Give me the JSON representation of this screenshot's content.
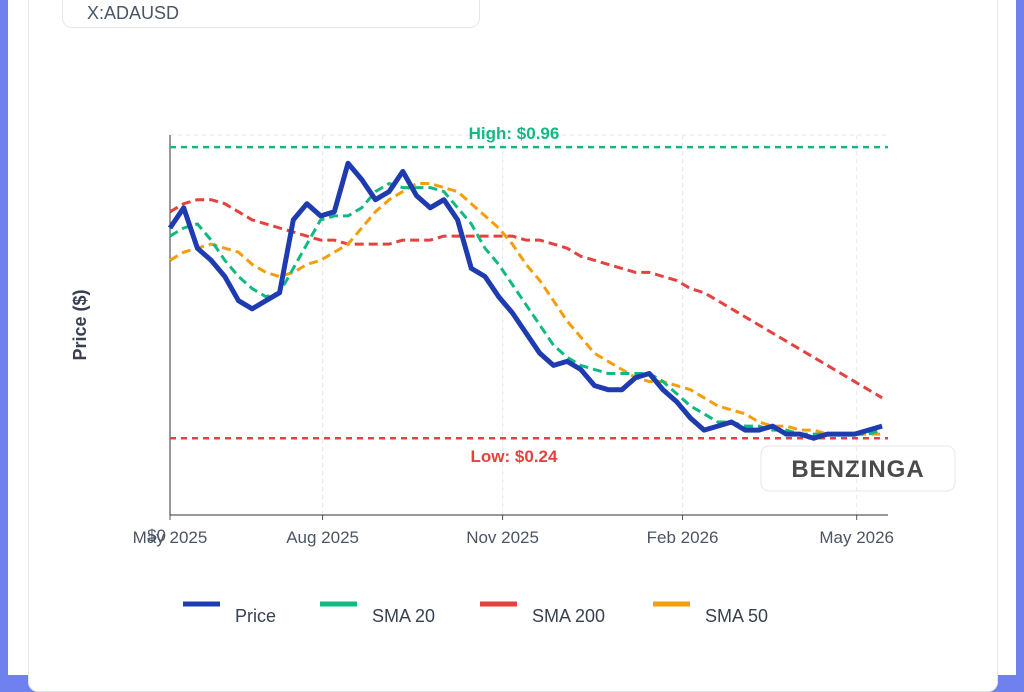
{
  "ticker": "X:ADAUSD",
  "watermark": "BENZINGA",
  "chart_data": {
    "type": "line",
    "ylabel": "Price ($)",
    "x": [
      "2025-05-15",
      "2025-05-22",
      "2025-05-29",
      "2025-06-05",
      "2025-06-12",
      "2025-06-19",
      "2025-06-26",
      "2025-07-03",
      "2025-07-10",
      "2025-07-17",
      "2025-07-24",
      "2025-07-31",
      "2025-08-07",
      "2025-08-14",
      "2025-08-21",
      "2025-08-28",
      "2025-09-04",
      "2025-09-11",
      "2025-09-18",
      "2025-09-25",
      "2025-10-02",
      "2025-10-09",
      "2025-10-16",
      "2025-10-23",
      "2025-10-30",
      "2025-11-06",
      "2025-11-13",
      "2025-11-20",
      "2025-11-27",
      "2025-12-04",
      "2025-12-11",
      "2025-12-18",
      "2025-12-25",
      "2026-01-01",
      "2026-01-08",
      "2026-01-15",
      "2026-01-22",
      "2026-01-29",
      "2026-02-05",
      "2026-02-12",
      "2026-02-19",
      "2026-02-26",
      "2026-03-05",
      "2026-03-12",
      "2026-03-19",
      "2026-03-26",
      "2026-04-02",
      "2026-04-09",
      "2026-04-16",
      "2026-04-23",
      "2026-04-30",
      "2026-05-07",
      "2026-05-14"
    ],
    "series": [
      {
        "name": "Price",
        "color": "#1f3bb0",
        "width": 5,
        "dash": false,
        "values": [
          0.76,
          0.81,
          0.71,
          0.68,
          0.64,
          0.58,
          0.56,
          0.58,
          0.6,
          0.78,
          0.82,
          0.79,
          0.8,
          0.92,
          0.88,
          0.83,
          0.85,
          0.9,
          0.84,
          0.81,
          0.83,
          0.78,
          0.66,
          0.64,
          0.59,
          0.55,
          0.5,
          0.45,
          0.42,
          0.43,
          0.41,
          0.37,
          0.36,
          0.36,
          0.39,
          0.4,
          0.36,
          0.33,
          0.29,
          0.26,
          0.27,
          0.28,
          0.26,
          0.26,
          0.27,
          0.25,
          0.25,
          0.24,
          0.25,
          0.25,
          0.25,
          0.26,
          0.27
        ]
      },
      {
        "name": "SMA 20",
        "color": "#10b981",
        "width": 3,
        "dash": true,
        "values": [
          0.74,
          0.76,
          0.77,
          0.73,
          0.68,
          0.64,
          0.61,
          0.59,
          0.6,
          0.66,
          0.72,
          0.78,
          0.79,
          0.79,
          0.81,
          0.85,
          0.87,
          0.86,
          0.86,
          0.86,
          0.85,
          0.81,
          0.77,
          0.71,
          0.67,
          0.62,
          0.57,
          0.52,
          0.47,
          0.44,
          0.42,
          0.41,
          0.4,
          0.4,
          0.4,
          0.4,
          0.38,
          0.35,
          0.32,
          0.3,
          0.28,
          0.28,
          0.27,
          0.27,
          0.26,
          0.26,
          0.25,
          0.25,
          0.25,
          0.25,
          0.25,
          0.25,
          0.26
        ]
      },
      {
        "name": "SMA 200",
        "color": "#e5413f",
        "width": 3,
        "dash": true,
        "values": [
          0.8,
          0.82,
          0.83,
          0.83,
          0.82,
          0.8,
          0.78,
          0.77,
          0.76,
          0.75,
          0.74,
          0.73,
          0.73,
          0.72,
          0.72,
          0.72,
          0.72,
          0.73,
          0.73,
          0.73,
          0.74,
          0.74,
          0.74,
          0.74,
          0.74,
          0.74,
          0.73,
          0.73,
          0.72,
          0.71,
          0.69,
          0.68,
          0.67,
          0.66,
          0.65,
          0.65,
          0.64,
          0.63,
          0.61,
          0.6,
          0.58,
          0.56,
          0.54,
          0.52,
          0.5,
          0.48,
          0.46,
          0.44,
          0.42,
          0.4,
          0.38,
          0.36,
          0.34
        ]
      },
      {
        "name": "SMA 50",
        "color": "#f59e0b",
        "width": 3,
        "dash": true,
        "values": [
          0.68,
          0.7,
          0.71,
          0.72,
          0.71,
          0.7,
          0.67,
          0.65,
          0.64,
          0.65,
          0.67,
          0.68,
          0.7,
          0.72,
          0.76,
          0.8,
          0.83,
          0.85,
          0.87,
          0.87,
          0.86,
          0.85,
          0.82,
          0.79,
          0.76,
          0.72,
          0.67,
          0.63,
          0.58,
          0.53,
          0.49,
          0.45,
          0.43,
          0.41,
          0.39,
          0.38,
          0.38,
          0.37,
          0.36,
          0.34,
          0.32,
          0.31,
          0.3,
          0.28,
          0.27,
          0.27,
          0.26,
          0.26,
          0.25,
          0.25,
          0.25,
          0.25,
          0.25
        ]
      }
    ],
    "reference_lines": [
      {
        "value": 0.96,
        "label": "High: $0.96",
        "color": "#10b981"
      },
      {
        "value": 0.24,
        "label": "Low: $0.24",
        "color": "#e5413f"
      }
    ],
    "xlim": [
      "2025-05-15",
      "2026-05-17"
    ],
    "xticks": [
      {
        "value": "2025-05-15",
        "label": "May 2025"
      },
      {
        "value": "2025-08-01",
        "label": "Aug 2025"
      },
      {
        "value": "2025-11-01",
        "label": "Nov 2025"
      },
      {
        "value": "2026-02-01",
        "label": "Feb 2026"
      },
      {
        "value": "2026-05-01",
        "label": "May 2026"
      }
    ],
    "ylim": [
      0.05,
      0.99
    ],
    "yticks": [
      {
        "value": 0,
        "label": "$0"
      }
    ],
    "grid": true,
    "legend": "bottom"
  }
}
